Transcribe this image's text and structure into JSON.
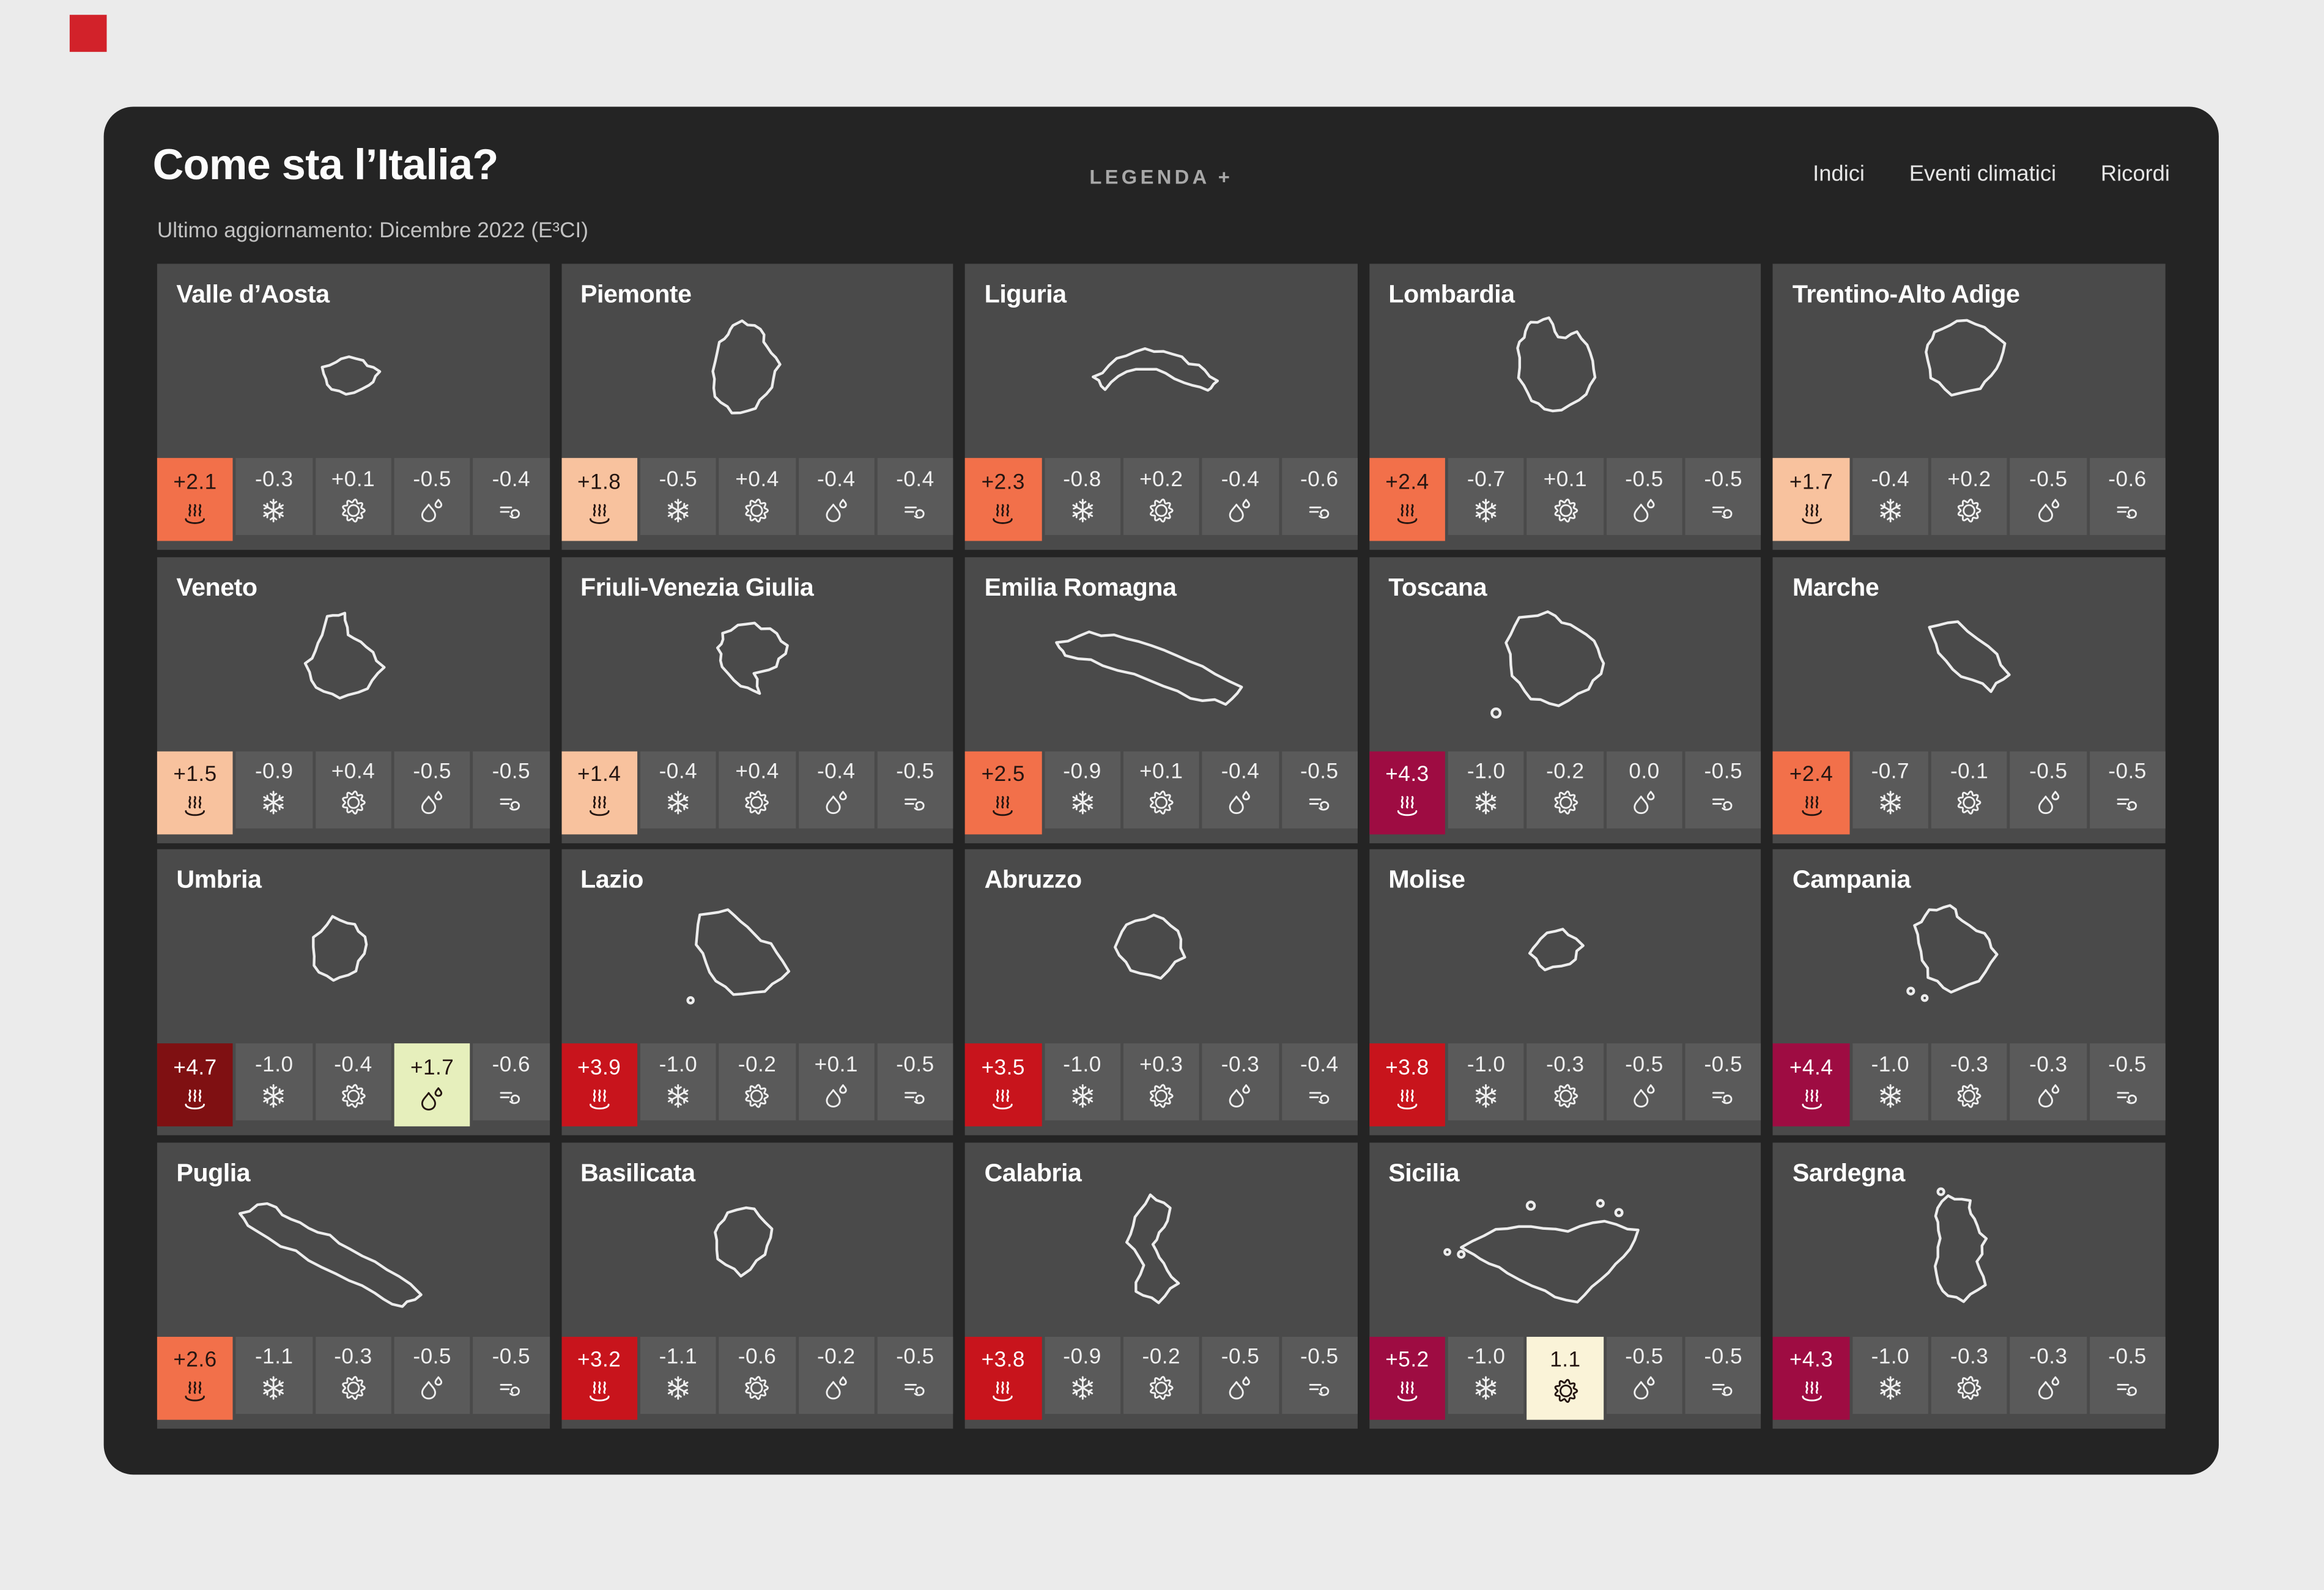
{
  "header": {
    "title": "Come sta l’Italia?",
    "subtitle": "Ultimo aggiornamento: Dicembre 2022 (E³CI)",
    "legend_label": "LEGENDA +"
  },
  "nav": {
    "items": [
      "Indici",
      "Eventi climatici",
      "Ricordi"
    ]
  },
  "indicators": [
    {
      "id": "heat",
      "icon": "heat-icon"
    },
    {
      "id": "frost",
      "icon": "frost-icon"
    },
    {
      "id": "drought",
      "icon": "drought-icon"
    },
    {
      "id": "precipitation",
      "icon": "precipitation-icon"
    },
    {
      "id": "wind",
      "icon": "wind-icon"
    }
  ],
  "palette": {
    "neutral": "#5A5A5A",
    "peach": "#F8C29E",
    "orange": "#F2704A",
    "red": "#C8141C",
    "crimson": "#9E0C42",
    "maroon": "#7F1012",
    "green": "#E6EFBC",
    "cream": "#FAF3D8",
    "dark_text": "#241511",
    "light_text": "#FFFFFF",
    "marker_red": "#D2222A"
  },
  "regions": [
    {
      "name": "Valle d’Aosta",
      "cells": [
        {
          "value": "+2.1",
          "tone": "orange"
        },
        {
          "value": "-0.3",
          "tone": "neutral"
        },
        {
          "value": "+0.1",
          "tone": "neutral"
        },
        {
          "value": "-0.5",
          "tone": "neutral"
        },
        {
          "value": "-0.4",
          "tone": "neutral"
        }
      ]
    },
    {
      "name": "Piemonte",
      "cells": [
        {
          "value": "+1.8",
          "tone": "peach"
        },
        {
          "value": "-0.5",
          "tone": "neutral"
        },
        {
          "value": "+0.4",
          "tone": "neutral"
        },
        {
          "value": "-0.4",
          "tone": "neutral"
        },
        {
          "value": "-0.4",
          "tone": "neutral"
        }
      ]
    },
    {
      "name": "Liguria",
      "cells": [
        {
          "value": "+2.3",
          "tone": "orange"
        },
        {
          "value": "-0.8",
          "tone": "neutral"
        },
        {
          "value": "+0.2",
          "tone": "neutral"
        },
        {
          "value": "-0.4",
          "tone": "neutral"
        },
        {
          "value": "-0.6",
          "tone": "neutral"
        }
      ]
    },
    {
      "name": "Lombardia",
      "cells": [
        {
          "value": "+2.4",
          "tone": "orange"
        },
        {
          "value": "-0.7",
          "tone": "neutral"
        },
        {
          "value": "+0.1",
          "tone": "neutral"
        },
        {
          "value": "-0.5",
          "tone": "neutral"
        },
        {
          "value": "-0.5",
          "tone": "neutral"
        }
      ]
    },
    {
      "name": "Trentino-Alto Adige",
      "cells": [
        {
          "value": "+1.7",
          "tone": "peach"
        },
        {
          "value": "-0.4",
          "tone": "neutral"
        },
        {
          "value": "+0.2",
          "tone": "neutral"
        },
        {
          "value": "-0.5",
          "tone": "neutral"
        },
        {
          "value": "-0.6",
          "tone": "neutral"
        }
      ]
    },
    {
      "name": "Veneto",
      "cells": [
        {
          "value": "+1.5",
          "tone": "peach"
        },
        {
          "value": "-0.9",
          "tone": "neutral"
        },
        {
          "value": "+0.4",
          "tone": "neutral"
        },
        {
          "value": "-0.5",
          "tone": "neutral"
        },
        {
          "value": "-0.5",
          "tone": "neutral"
        }
      ]
    },
    {
      "name": "Friuli-Venezia Giulia",
      "cells": [
        {
          "value": "+1.4",
          "tone": "peach"
        },
        {
          "value": "-0.4",
          "tone": "neutral"
        },
        {
          "value": "+0.4",
          "tone": "neutral"
        },
        {
          "value": "-0.4",
          "tone": "neutral"
        },
        {
          "value": "-0.5",
          "tone": "neutral"
        }
      ]
    },
    {
      "name": "Emilia Romagna",
      "cells": [
        {
          "value": "+2.5",
          "tone": "orange"
        },
        {
          "value": "-0.9",
          "tone": "neutral"
        },
        {
          "value": "+0.1",
          "tone": "neutral"
        },
        {
          "value": "-0.4",
          "tone": "neutral"
        },
        {
          "value": "-0.5",
          "tone": "neutral"
        }
      ]
    },
    {
      "name": "Toscana",
      "cells": [
        {
          "value": "+4.3",
          "tone": "crimson"
        },
        {
          "value": "-1.0",
          "tone": "neutral"
        },
        {
          "value": "-0.2",
          "tone": "neutral"
        },
        {
          "value": "0.0",
          "tone": "neutral"
        },
        {
          "value": "-0.5",
          "tone": "neutral"
        }
      ]
    },
    {
      "name": "Marche",
      "cells": [
        {
          "value": "+2.4",
          "tone": "orange"
        },
        {
          "value": "-0.7",
          "tone": "neutral"
        },
        {
          "value": "-0.1",
          "tone": "neutral"
        },
        {
          "value": "-0.5",
          "tone": "neutral"
        },
        {
          "value": "-0.5",
          "tone": "neutral"
        }
      ]
    },
    {
      "name": "Umbria",
      "cells": [
        {
          "value": "+4.7",
          "tone": "maroon"
        },
        {
          "value": "-1.0",
          "tone": "neutral"
        },
        {
          "value": "-0.4",
          "tone": "neutral"
        },
        {
          "value": "+1.7",
          "tone": "green"
        },
        {
          "value": "-0.6",
          "tone": "neutral"
        }
      ]
    },
    {
      "name": "Lazio",
      "cells": [
        {
          "value": "+3.9",
          "tone": "red"
        },
        {
          "value": "-1.0",
          "tone": "neutral"
        },
        {
          "value": "-0.2",
          "tone": "neutral"
        },
        {
          "value": "+0.1",
          "tone": "neutral"
        },
        {
          "value": "-0.5",
          "tone": "neutral"
        }
      ]
    },
    {
      "name": "Abruzzo",
      "cells": [
        {
          "value": "+3.5",
          "tone": "red"
        },
        {
          "value": "-1.0",
          "tone": "neutral"
        },
        {
          "value": "+0.3",
          "tone": "neutral"
        },
        {
          "value": "-0.3",
          "tone": "neutral"
        },
        {
          "value": "-0.4",
          "tone": "neutral"
        }
      ]
    },
    {
      "name": "Molise",
      "cells": [
        {
          "value": "+3.8",
          "tone": "red"
        },
        {
          "value": "-1.0",
          "tone": "neutral"
        },
        {
          "value": "-0.3",
          "tone": "neutral"
        },
        {
          "value": "-0.5",
          "tone": "neutral"
        },
        {
          "value": "-0.5",
          "tone": "neutral"
        }
      ]
    },
    {
      "name": "Campania",
      "cells": [
        {
          "value": "+4.4",
          "tone": "crimson"
        },
        {
          "value": "-1.0",
          "tone": "neutral"
        },
        {
          "value": "-0.3",
          "tone": "neutral"
        },
        {
          "value": "-0.3",
          "tone": "neutral"
        },
        {
          "value": "-0.5",
          "tone": "neutral"
        }
      ]
    },
    {
      "name": "Puglia",
      "cells": [
        {
          "value": "+2.6",
          "tone": "orange"
        },
        {
          "value": "-1.1",
          "tone": "neutral"
        },
        {
          "value": "-0.3",
          "tone": "neutral"
        },
        {
          "value": "-0.5",
          "tone": "neutral"
        },
        {
          "value": "-0.5",
          "tone": "neutral"
        }
      ]
    },
    {
      "name": "Basilicata",
      "cells": [
        {
          "value": "+3.2",
          "tone": "red"
        },
        {
          "value": "-1.1",
          "tone": "neutral"
        },
        {
          "value": "-0.6",
          "tone": "neutral"
        },
        {
          "value": "-0.2",
          "tone": "neutral"
        },
        {
          "value": "-0.5",
          "tone": "neutral"
        }
      ]
    },
    {
      "name": "Calabria",
      "cells": [
        {
          "value": "+3.8",
          "tone": "red"
        },
        {
          "value": "-0.9",
          "tone": "neutral"
        },
        {
          "value": "-0.2",
          "tone": "neutral"
        },
        {
          "value": "-0.5",
          "tone": "neutral"
        },
        {
          "value": "-0.5",
          "tone": "neutral"
        }
      ]
    },
    {
      "name": "Sicilia",
      "cells": [
        {
          "value": "+5.2",
          "tone": "crimson"
        },
        {
          "value": "-1.0",
          "tone": "neutral"
        },
        {
          "value": "1.1",
          "tone": "cream"
        },
        {
          "value": "-0.5",
          "tone": "neutral"
        },
        {
          "value": "-0.5",
          "tone": "neutral"
        }
      ]
    },
    {
      "name": "Sardegna",
      "cells": [
        {
          "value": "+4.3",
          "tone": "crimson"
        },
        {
          "value": "-1.0",
          "tone": "neutral"
        },
        {
          "value": "-0.3",
          "tone": "neutral"
        },
        {
          "value": "-0.3",
          "tone": "neutral"
        },
        {
          "value": "-0.5",
          "tone": "neutral"
        }
      ]
    }
  ]
}
